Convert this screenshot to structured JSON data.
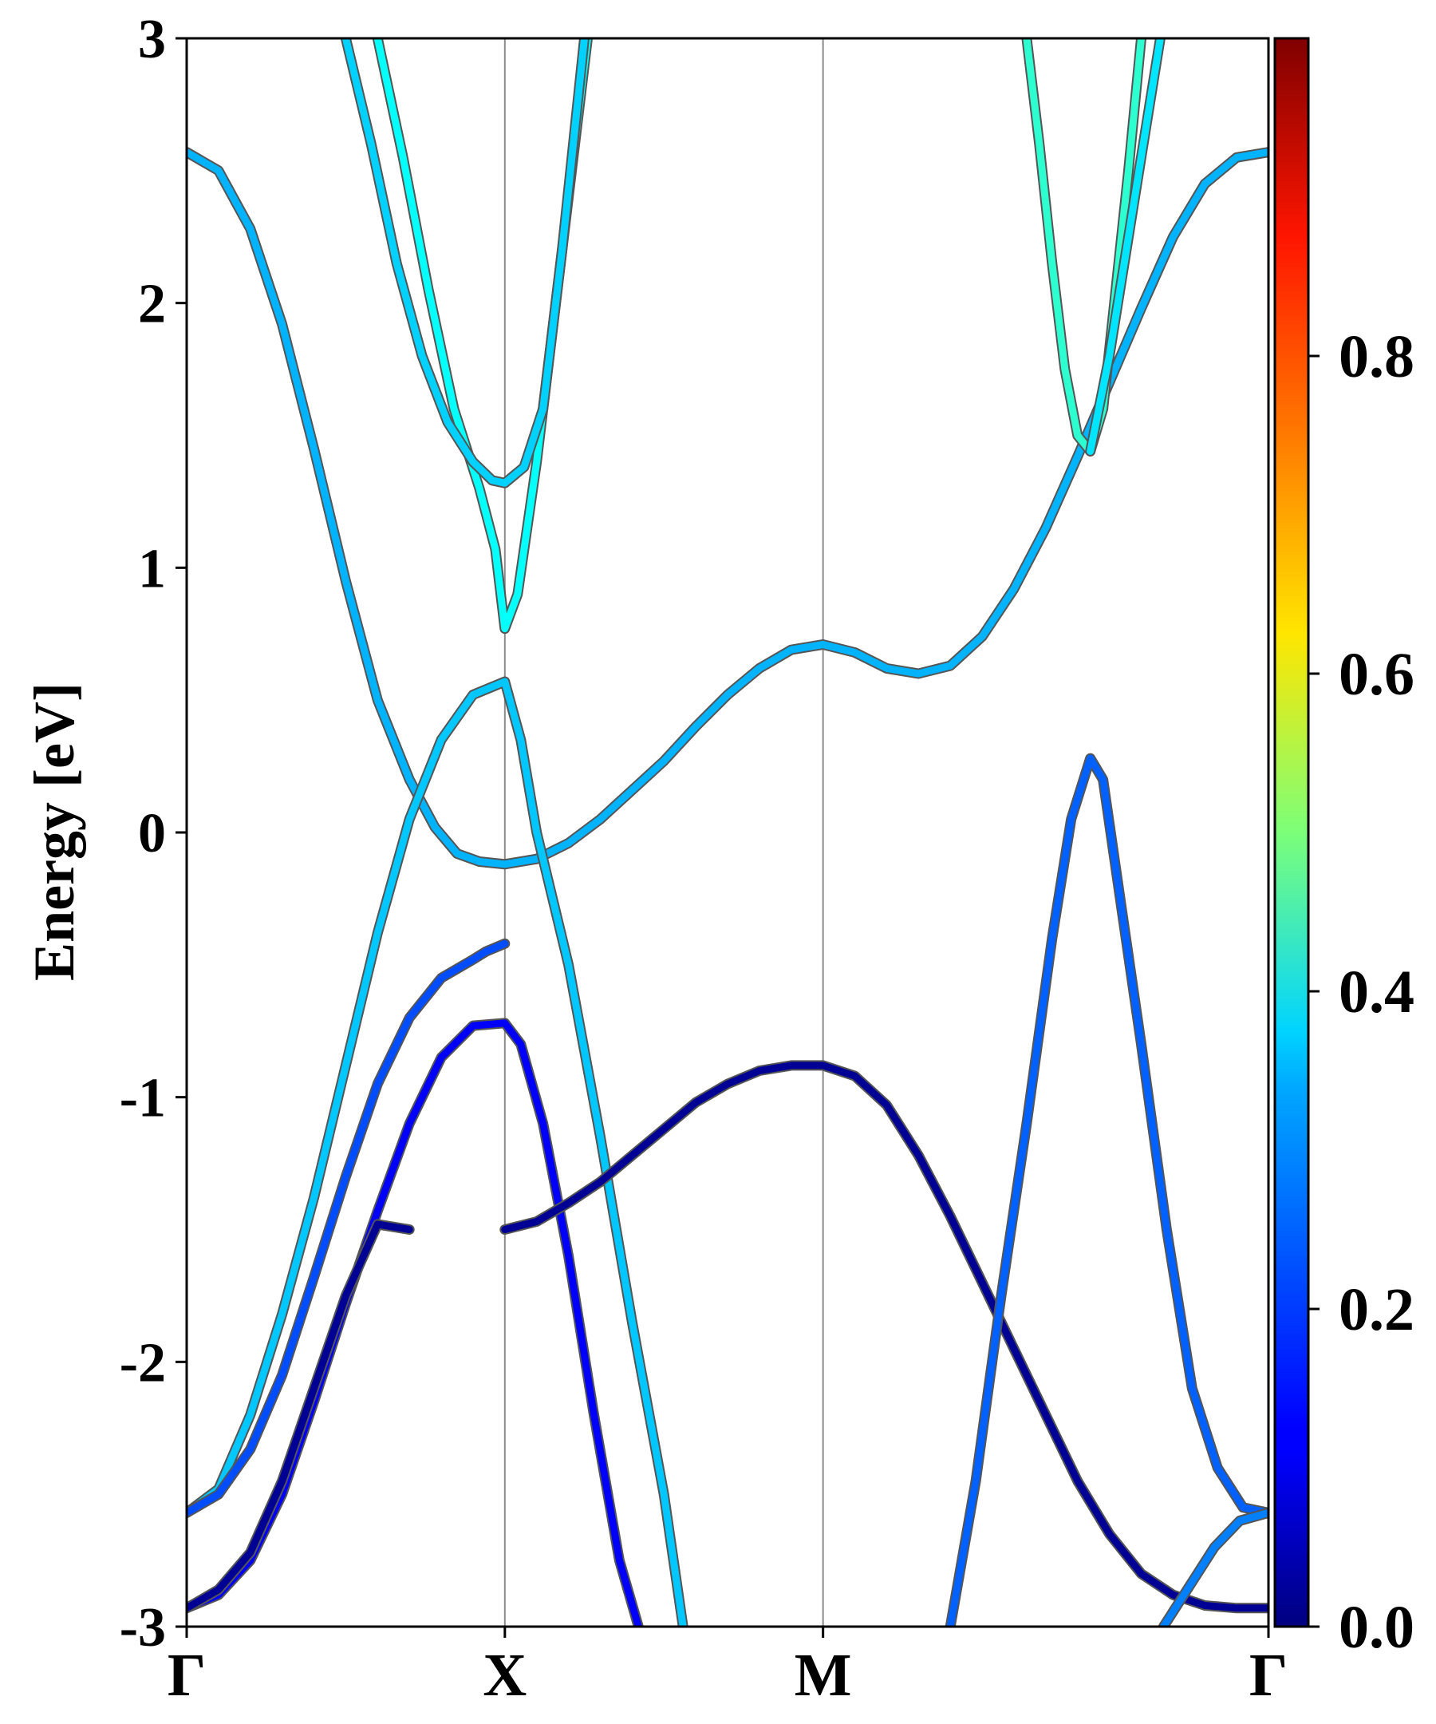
{
  "chart_data": {
    "type": "line",
    "title": "",
    "xlabel": "",
    "ylabel": "Energy [eV]",
    "ylim": [
      -3,
      3
    ],
    "yticks": [
      3,
      2,
      1,
      0,
      -1,
      -2,
      -3
    ],
    "ytick_labels": [
      "3",
      "2",
      "1",
      "0",
      "-1",
      "-2",
      "-3"
    ],
    "kpath_positions": [
      0,
      1,
      2,
      3.4
    ],
    "kpath_labels": [
      "Γ",
      "X",
      "M",
      "Γ"
    ],
    "vertical_lines_at": [
      1,
      2
    ],
    "colormap": "jet",
    "colorbar_range": [
      0.0,
      1.0
    ],
    "colorbar_ticks": [
      0.0,
      0.2,
      0.4,
      0.6,
      0.8
    ],
    "colorbar_tick_labels": [
      "0.0",
      "0.2",
      "0.4",
      "0.6",
      "0.8"
    ],
    "series": [
      {
        "weight": 0.3,
        "points": [
          [
            0,
            2.57
          ],
          [
            0.1,
            2.5
          ],
          [
            0.2,
            2.28
          ],
          [
            0.3,
            1.92
          ],
          [
            0.4,
            1.45
          ],
          [
            0.5,
            0.95
          ],
          [
            0.6,
            0.5
          ],
          [
            0.7,
            0.2
          ],
          [
            0.78,
            0.02
          ],
          [
            0.85,
            -0.08
          ],
          [
            0.92,
            -0.11
          ],
          [
            1.0,
            -0.12
          ],
          [
            1.1,
            -0.1
          ],
          [
            1.2,
            -0.04
          ],
          [
            1.3,
            0.05
          ],
          [
            1.4,
            0.16
          ],
          [
            1.5,
            0.27
          ],
          [
            1.6,
            0.4
          ],
          [
            1.7,
            0.52
          ],
          [
            1.8,
            0.62
          ],
          [
            1.9,
            0.69
          ],
          [
            2.0,
            0.71
          ],
          [
            2.1,
            0.68
          ],
          [
            2.2,
            0.62
          ],
          [
            2.3,
            0.6
          ],
          [
            2.4,
            0.63
          ],
          [
            2.5,
            0.74
          ],
          [
            2.6,
            0.92
          ],
          [
            2.7,
            1.15
          ],
          [
            2.8,
            1.42
          ],
          [
            2.9,
            1.7
          ],
          [
            3.0,
            1.98
          ],
          [
            3.1,
            2.25
          ],
          [
            3.2,
            2.45
          ],
          [
            3.3,
            2.55
          ],
          [
            3.4,
            2.57
          ]
        ]
      },
      {
        "weight": 0.32,
        "points": [
          [
            0,
            -2.57
          ],
          [
            0.1,
            -2.48
          ],
          [
            0.2,
            -2.2
          ],
          [
            0.3,
            -1.82
          ],
          [
            0.4,
            -1.38
          ],
          [
            0.5,
            -0.88
          ],
          [
            0.6,
            -0.38
          ],
          [
            0.7,
            0.05
          ],
          [
            0.8,
            0.35
          ],
          [
            0.9,
            0.52
          ],
          [
            1.0,
            0.57
          ],
          [
            1.05,
            0.35
          ],
          [
            1.1,
            0.0
          ],
          [
            1.2,
            -0.5
          ],
          [
            1.3,
            -1.15
          ],
          [
            1.4,
            -1.85
          ],
          [
            1.5,
            -2.5
          ],
          [
            1.56,
            -3.0
          ]
        ]
      },
      {
        "weight": 0.2,
        "points": [
          [
            0,
            -2.57
          ],
          [
            0.1,
            -2.5
          ],
          [
            0.2,
            -2.33
          ],
          [
            0.3,
            -2.05
          ],
          [
            0.4,
            -1.68
          ],
          [
            0.5,
            -1.3
          ],
          [
            0.6,
            -0.95
          ],
          [
            0.7,
            -0.7
          ],
          [
            0.8,
            -0.55
          ],
          [
            0.9,
            -0.48
          ],
          [
            0.94,
            -0.45
          ],
          [
            1.0,
            -0.42
          ]
        ]
      },
      {
        "weight": 0.12,
        "points": [
          [
            0,
            -2.93
          ],
          [
            0.1,
            -2.88
          ],
          [
            0.2,
            -2.75
          ],
          [
            0.3,
            -2.5
          ],
          [
            0.4,
            -2.15
          ],
          [
            0.5,
            -1.78
          ],
          [
            0.6,
            -1.43
          ],
          [
            0.7,
            -1.1
          ],
          [
            0.8,
            -0.85
          ],
          [
            0.9,
            -0.73
          ],
          [
            1.0,
            -0.72
          ],
          [
            1.05,
            -0.8
          ],
          [
            1.12,
            -1.1
          ],
          [
            1.2,
            -1.6
          ],
          [
            1.28,
            -2.2
          ],
          [
            1.36,
            -2.75
          ],
          [
            1.42,
            -3.0
          ]
        ]
      },
      {
        "weight": 0.02,
        "points": [
          [
            0,
            -2.93
          ],
          [
            0.1,
            -2.86
          ],
          [
            0.2,
            -2.72
          ],
          [
            0.3,
            -2.45
          ],
          [
            0.4,
            -2.1
          ],
          [
            0.5,
            -1.75
          ],
          [
            0.6,
            -1.48
          ],
          [
            0.7,
            -1.5
          ]
        ]
      },
      {
        "weight": 0.02,
        "points": [
          [
            1.0,
            -1.5
          ],
          [
            1.1,
            -1.47
          ],
          [
            1.2,
            -1.4
          ],
          [
            1.3,
            -1.32
          ],
          [
            1.4,
            -1.22
          ],
          [
            1.5,
            -1.12
          ],
          [
            1.6,
            -1.02
          ],
          [
            1.7,
            -0.95
          ],
          [
            1.8,
            -0.9
          ],
          [
            1.9,
            -0.88
          ],
          [
            2.0,
            -0.88
          ],
          [
            2.1,
            -0.92
          ],
          [
            2.2,
            -1.03
          ],
          [
            2.3,
            -1.22
          ],
          [
            2.4,
            -1.45
          ],
          [
            2.5,
            -1.7
          ],
          [
            2.6,
            -1.95
          ],
          [
            2.7,
            -2.2
          ],
          [
            2.8,
            -2.45
          ],
          [
            2.9,
            -2.65
          ],
          [
            3.0,
            -2.8
          ],
          [
            3.1,
            -2.88
          ],
          [
            3.2,
            -2.92
          ],
          [
            3.3,
            -2.93
          ],
          [
            3.4,
            -2.93
          ]
        ]
      },
      {
        "weight": 0.22,
        "points": [
          [
            2.4,
            -3.0
          ],
          [
            2.48,
            -2.45
          ],
          [
            2.56,
            -1.75
          ],
          [
            2.64,
            -1.1
          ],
          [
            2.72,
            -0.4
          ],
          [
            2.78,
            0.05
          ],
          [
            2.84,
            0.28
          ],
          [
            2.88,
            0.2
          ],
          [
            2.94,
            -0.3
          ],
          [
            3.0,
            -0.8
          ],
          [
            3.08,
            -1.5
          ],
          [
            3.16,
            -2.1
          ],
          [
            3.24,
            -2.4
          ],
          [
            3.32,
            -2.55
          ],
          [
            3.4,
            -2.57
          ]
        ]
      },
      {
        "weight": 0.25,
        "points": [
          [
            3.07,
            -3.0
          ],
          [
            3.15,
            -2.85
          ],
          [
            3.23,
            -2.7
          ],
          [
            3.31,
            -2.6
          ],
          [
            3.4,
            -2.57
          ]
        ]
      },
      {
        "weight": 0.38,
        "points": [
          [
            0.6,
            3.0
          ],
          [
            0.68,
            2.55
          ],
          [
            0.76,
            2.05
          ],
          [
            0.84,
            1.6
          ],
          [
            0.92,
            1.3
          ],
          [
            0.97,
            1.07
          ],
          [
            1.0,
            0.77
          ],
          [
            1.04,
            0.9
          ],
          [
            1.1,
            1.4
          ],
          [
            1.18,
            2.2
          ],
          [
            1.26,
            3.0
          ]
        ]
      },
      {
        "weight": 0.33,
        "points": [
          [
            0.5,
            3.0
          ],
          [
            0.58,
            2.6
          ],
          [
            0.66,
            2.15
          ],
          [
            0.74,
            1.8
          ],
          [
            0.82,
            1.55
          ],
          [
            0.9,
            1.4
          ],
          [
            0.96,
            1.33
          ],
          [
            1.0,
            1.32
          ],
          [
            1.06,
            1.38
          ],
          [
            1.12,
            1.6
          ],
          [
            1.18,
            2.2
          ],
          [
            1.25,
            3.0
          ]
        ]
      },
      {
        "weight": 0.42,
        "points": [
          [
            2.64,
            3.0
          ],
          [
            2.68,
            2.6
          ],
          [
            2.72,
            2.15
          ],
          [
            2.76,
            1.75
          ],
          [
            2.8,
            1.5
          ],
          [
            2.84,
            1.44
          ],
          [
            2.88,
            1.6
          ],
          [
            2.92,
            2.05
          ],
          [
            2.96,
            2.5
          ],
          [
            3.0,
            3.0
          ]
        ]
      },
      {
        "weight": 0.35,
        "points": [
          [
            2.84,
            1.44
          ],
          [
            2.9,
            1.8
          ],
          [
            2.96,
            2.25
          ],
          [
            3.02,
            2.7
          ],
          [
            3.06,
            3.0
          ]
        ]
      }
    ]
  }
}
